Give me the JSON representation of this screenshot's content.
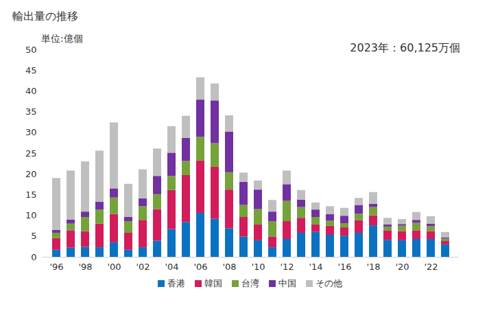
{
  "chart_data": {
    "type": "bar",
    "title": "輸出量の推移",
    "ylabel": "単位:億個",
    "annotations": [
      "2023年：60,125万個"
    ],
    "stacked": true,
    "grid": false,
    "legend": "bottom",
    "categories": [
      "'96",
      null,
      "'98",
      null,
      "'00",
      null,
      "'02",
      null,
      "'04",
      null,
      "'06",
      null,
      "'08",
      null,
      "'10",
      null,
      "'12",
      null,
      "'14",
      null,
      "'16",
      null,
      "'18",
      null,
      "'20",
      null,
      "'22",
      null
    ],
    "series": [
      {
        "name": "香港",
        "color": "#0b72c2",
        "values": [
          1.7,
          2.2,
          2.4,
          2.3,
          3.5,
          1.7,
          2.3,
          3.9,
          6.7,
          8.4,
          10.6,
          9.2,
          6.9,
          4.9,
          4.0,
          2.3,
          4.3,
          5.8,
          6.0,
          5.3,
          5.1,
          5.8,
          7.6,
          4.1,
          4.0,
          4.3,
          4.3,
          3.0
        ]
      },
      {
        "name": "韓国",
        "color": "#d21c5c",
        "values": [
          2.8,
          4.2,
          3.8,
          5.7,
          6.8,
          4.1,
          6.6,
          7.6,
          9.4,
          11.3,
          12.6,
          12.5,
          9.3,
          4.7,
          3.8,
          2.6,
          4.3,
          3.6,
          1.8,
          2.2,
          2.0,
          3.0,
          2.4,
          2.3,
          2.2,
          2.1,
          1.9,
          0.8
        ]
      },
      {
        "name": "台湾",
        "color": "#76a23a",
        "values": [
          1.3,
          1.6,
          3.4,
          3.4,
          4.0,
          2.8,
          3.3,
          3.6,
          3.4,
          3.4,
          5.7,
          5.7,
          4.2,
          2.9,
          3.7,
          3.7,
          4.9,
          2.6,
          1.8,
          1.2,
          1.0,
          1.6,
          2.0,
          0.9,
          1.3,
          1.8,
          1.2,
          0.6
        ]
      },
      {
        "name": "中国",
        "color": "#7131a1",
        "values": [
          0.7,
          1.0,
          1.3,
          1.9,
          2.2,
          1.0,
          1.9,
          4.4,
          5.6,
          5.6,
          9.0,
          10.3,
          9.8,
          5.6,
          4.7,
          2.3,
          4.0,
          1.8,
          1.8,
          1.6,
          1.8,
          2.1,
          0.8,
          0.5,
          0.4,
          0.7,
          0.6,
          0.3
        ]
      },
      {
        "name": "その他",
        "color": "#bfbfbf",
        "values": [
          12.5,
          11.8,
          12.1,
          12.3,
          15.9,
          8.0,
          7.0,
          6.6,
          6.4,
          5.3,
          5.4,
          4.1,
          3.9,
          2.2,
          2.2,
          2.8,
          3.3,
          2.3,
          1.7,
          1.9,
          1.9,
          1.7,
          2.8,
          1.6,
          1.2,
          1.9,
          1.8,
          1.3
        ]
      }
    ],
    "ylim": [
      0,
      50
    ],
    "yticks": [
      0,
      5,
      10,
      15,
      20,
      25,
      30,
      35,
      40,
      45,
      50
    ]
  }
}
